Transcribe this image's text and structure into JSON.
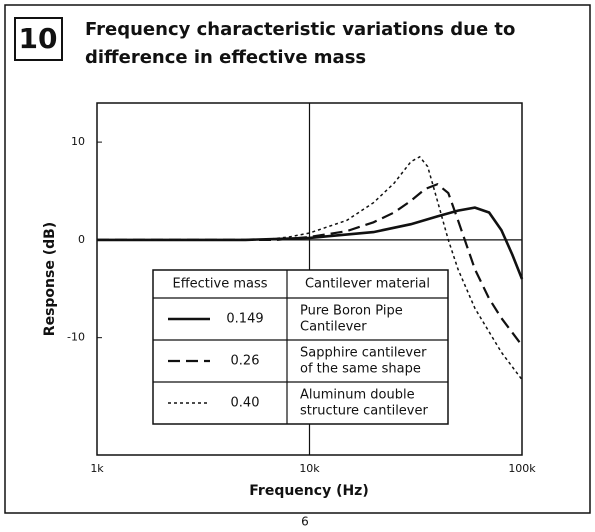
{
  "figure_number": "10",
  "page_number": "6",
  "chart_data": {
    "type": "line",
    "title": [
      "Frequency characteristic variations due to",
      "difference in effective mass"
    ],
    "xlabel": "Frequency (Hz)",
    "ylabel": "Response (dB)",
    "xscale": "log",
    "xlim": [
      1000,
      100000
    ],
    "xticks": [
      {
        "value": 1000,
        "label": "1k"
      },
      {
        "value": 10000,
        "label": "10k"
      },
      {
        "value": 100000,
        "label": "100k"
      }
    ],
    "ylim": [
      -22,
      14
    ],
    "yticks": [
      10,
      0,
      -10
    ],
    "grid_lines": {
      "x": [
        10000
      ],
      "y": [
        0
      ]
    },
    "legend_headers": [
      "Effective mass",
      "Cantilever material"
    ],
    "series": [
      {
        "name": "0.149",
        "material": [
          "Pure Boron Pipe",
          "Cantilever"
        ],
        "color": "#111111",
        "dash": "solid",
        "x": [
          1000,
          5000,
          10000,
          20000,
          30000,
          40000,
          50000,
          60000,
          70000,
          80000,
          90000,
          100000
        ],
        "values": [
          0,
          0,
          0.2,
          0.8,
          1.6,
          2.4,
          3,
          3.3,
          2.8,
          1,
          -1.5,
          -4
        ]
      },
      {
        "name": "0.26",
        "material": [
          "Sapphire cantilever",
          "of the same shape"
        ],
        "color": "#111111",
        "dash": "dashed",
        "x": [
          1000,
          7000,
          10000,
          15000,
          20000,
          25000,
          30000,
          35000,
          40000,
          45000,
          50000,
          60000,
          70000,
          80000,
          100000
        ],
        "values": [
          0,
          0,
          0.3,
          0.9,
          1.8,
          2.8,
          4,
          5.2,
          5.7,
          4.8,
          2,
          -3,
          -6,
          -8,
          -10.8
        ]
      },
      {
        "name": "0.40",
        "material": [
          "Aluminum double",
          "structure cantilever"
        ],
        "color": "#111111",
        "dash": "dotted",
        "x": [
          1000,
          6000,
          8000,
          10000,
          15000,
          20000,
          25000,
          30000,
          33000,
          36000,
          40000,
          45000,
          50000,
          60000,
          80000,
          100000
        ],
        "values": [
          0,
          0,
          0.3,
          0.7,
          2,
          3.8,
          5.8,
          8,
          8.5,
          7.5,
          4,
          0,
          -3,
          -7,
          -11.5,
          -14.3
        ]
      }
    ]
  }
}
